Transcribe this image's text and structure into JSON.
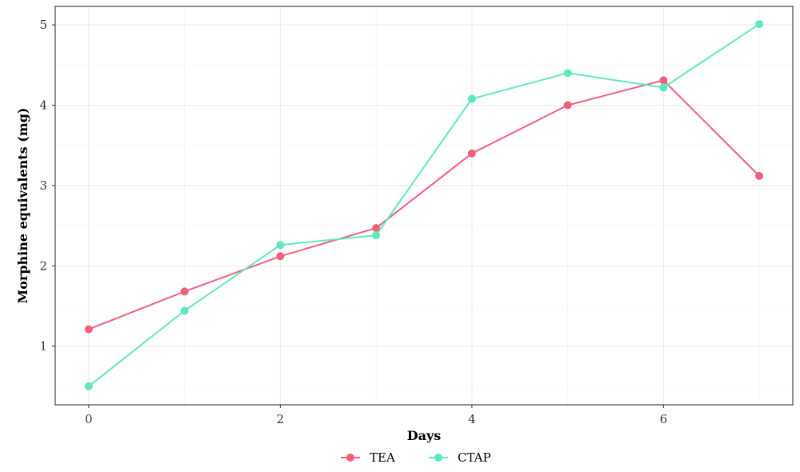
{
  "chart_data": {
    "type": "line",
    "x": [
      0,
      1,
      2,
      3,
      4,
      5,
      6,
      7
    ],
    "xlabel": "Days",
    "ylabel": "Morphine equivalents (mg)",
    "xticks": [
      "0",
      "2",
      "4",
      "6"
    ],
    "yticks": [
      "1",
      "2",
      "3",
      "4",
      "5"
    ],
    "xlim": [
      -0.35,
      7.35
    ],
    "ylim": [
      0.27,
      5.23
    ],
    "grid": true,
    "legend_position": "bottom",
    "series": [
      {
        "name": "TEA",
        "color": "#f0607a",
        "values": [
          1.21,
          1.68,
          2.12,
          2.47,
          3.4,
          4.0,
          4.31,
          3.12
        ]
      },
      {
        "name": "CTAP",
        "color": "#5fe8bf",
        "values": [
          0.5,
          1.44,
          2.26,
          2.38,
          4.08,
          4.4,
          4.22,
          5.01
        ]
      }
    ]
  }
}
